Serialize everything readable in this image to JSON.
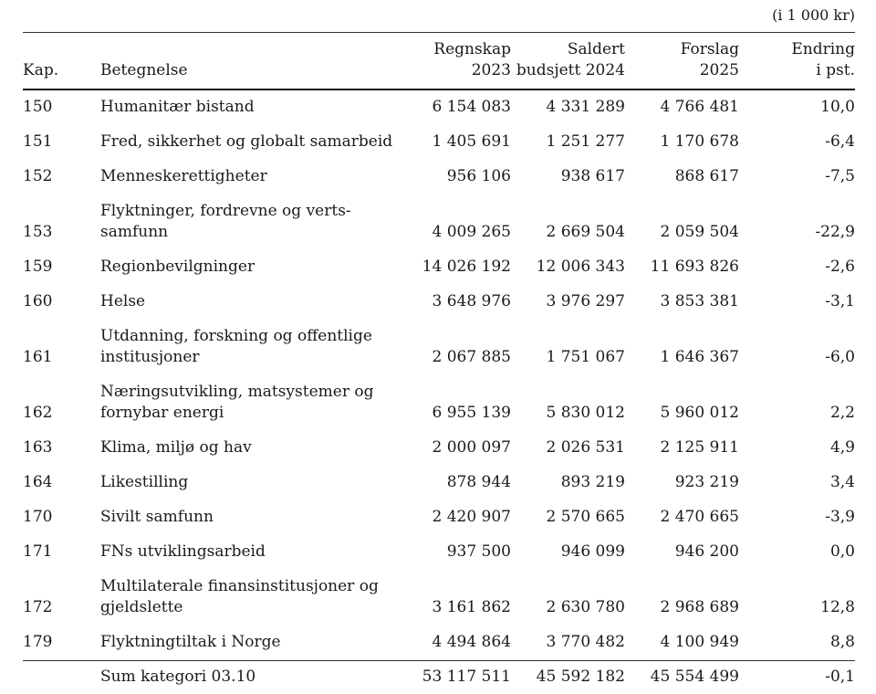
{
  "unit_note": "(i 1 000 kr)",
  "table": {
    "header": {
      "kap": "Kap.",
      "betegnelse": "Betegnelse",
      "regnskap": "Regnskap\n2023",
      "saldert": "Saldert\nbudsjett 2024",
      "forslag": "Forslag\n2025",
      "endring": "Endring\ni pst."
    },
    "rows": [
      {
        "kap": "150",
        "betegnelse": "Humanitær bistand",
        "regnskap": "6 154 083",
        "saldert": "4 331 289",
        "forslag": "4 766 481",
        "endring": "10,0"
      },
      {
        "kap": "151",
        "betegnelse": "Fred, sikkerhet og globalt samarbeid",
        "regnskap": "1 405 691",
        "saldert": "1 251 277",
        "forslag": "1 170 678",
        "endring": "-6,4"
      },
      {
        "kap": "152",
        "betegnelse": "Menneskerettigheter",
        "regnskap": "956 106",
        "saldert": "938 617",
        "forslag": "868 617",
        "endring": "-7,5"
      },
      {
        "kap": "153",
        "betegnelse": "Flyktninger, fordrevne og verts-\nsamfunn",
        "regnskap": "4 009 265",
        "saldert": "2 669 504",
        "forslag": "2 059 504",
        "endring": "-22,9"
      },
      {
        "kap": "159",
        "betegnelse": "Regionbevilgninger",
        "regnskap": "14 026 192",
        "saldert": "12 006 343",
        "forslag": "11 693 826",
        "endring": "-2,6"
      },
      {
        "kap": "160",
        "betegnelse": "Helse",
        "regnskap": "3 648 976",
        "saldert": "3 976 297",
        "forslag": "3 853 381",
        "endring": "-3,1"
      },
      {
        "kap": "161",
        "betegnelse": "Utdanning, forskning og offentlige\ninstitusjoner",
        "regnskap": "2 067 885",
        "saldert": "1 751 067",
        "forslag": "1 646 367",
        "endring": "-6,0"
      },
      {
        "kap": "162",
        "betegnelse": "Næringsutvikling, matsystemer og\nfornybar energi",
        "regnskap": "6 955 139",
        "saldert": "5 830 012",
        "forslag": "5 960 012",
        "endring": "2,2"
      },
      {
        "kap": "163",
        "betegnelse": "Klima, miljø og hav",
        "regnskap": "2 000 097",
        "saldert": "2 026 531",
        "forslag": "2 125 911",
        "endring": "4,9"
      },
      {
        "kap": "164",
        "betegnelse": "Likestilling",
        "regnskap": "878 944",
        "saldert": "893 219",
        "forslag": "923 219",
        "endring": "3,4"
      },
      {
        "kap": "170",
        "betegnelse": "Sivilt samfunn",
        "regnskap": "2 420 907",
        "saldert": "2 570 665",
        "forslag": "2 470 665",
        "endring": "-3,9"
      },
      {
        "kap": "171",
        "betegnelse": "FNs utviklingsarbeid",
        "regnskap": "937 500",
        "saldert": "946 099",
        "forslag": "946 200",
        "endring": "0,0"
      },
      {
        "kap": "172",
        "betegnelse": "Multilaterale finansinstitusjoner og\ngjeldslette",
        "regnskap": "3 161 862",
        "saldert": "2 630 780",
        "forslag": "2 968 689",
        "endring": "12,8"
      },
      {
        "kap": "179",
        "betegnelse": "Flyktningtiltak i Norge",
        "regnskap": "4 494 864",
        "saldert": "3 770 482",
        "forslag": "4 100 949",
        "endring": "8,8"
      }
    ],
    "sum_row": {
      "kap": "",
      "betegnelse": "Sum kategori 03.10",
      "regnskap": "53 117 511",
      "saldert": "45 592 182",
      "forslag": "45 554 499",
      "endring": "-0,1"
    }
  }
}
